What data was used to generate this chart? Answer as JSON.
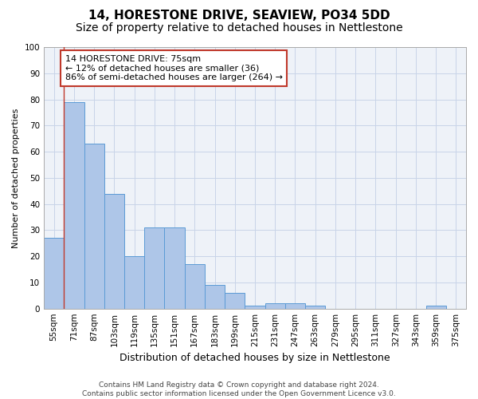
{
  "title": "14, HORESTONE DRIVE, SEAVIEW, PO34 5DD",
  "subtitle": "Size of property relative to detached houses in Nettlestone",
  "xlabel": "Distribution of detached houses by size in Nettlestone",
  "ylabel": "Number of detached properties",
  "categories": [
    "55sqm",
    "71sqm",
    "87sqm",
    "103sqm",
    "119sqm",
    "135sqm",
    "151sqm",
    "167sqm",
    "183sqm",
    "199sqm",
    "215sqm",
    "231sqm",
    "247sqm",
    "263sqm",
    "279sqm",
    "295sqm",
    "311sqm",
    "327sqm",
    "343sqm",
    "359sqm",
    "375sqm"
  ],
  "values": [
    27,
    79,
    63,
    44,
    20,
    31,
    31,
    17,
    9,
    6,
    1,
    2,
    2,
    1,
    0,
    0,
    0,
    0,
    0,
    1,
    0
  ],
  "bar_color": "#aec6e8",
  "bar_edge_color": "#5b9bd5",
  "property_line_x": 0.5,
  "property_line_color": "#c0392b",
  "annotation_text": "14 HORESTONE DRIVE: 75sqm\n← 12% of detached houses are smaller (36)\n86% of semi-detached houses are larger (264) →",
  "annotation_box_color": "white",
  "annotation_box_edge_color": "#c0392b",
  "ylim": [
    0,
    100
  ],
  "yticks": [
    0,
    10,
    20,
    30,
    40,
    50,
    60,
    70,
    80,
    90,
    100
  ],
  "grid_color": "#c8d4e8",
  "background_color": "#eef2f8",
  "footer": "Contains HM Land Registry data © Crown copyright and database right 2024.\nContains public sector information licensed under the Open Government Licence v3.0.",
  "title_fontsize": 11,
  "subtitle_fontsize": 10,
  "xlabel_fontsize": 9,
  "ylabel_fontsize": 8,
  "tick_fontsize": 7.5,
  "annotation_fontsize": 8,
  "footer_fontsize": 6.5
}
